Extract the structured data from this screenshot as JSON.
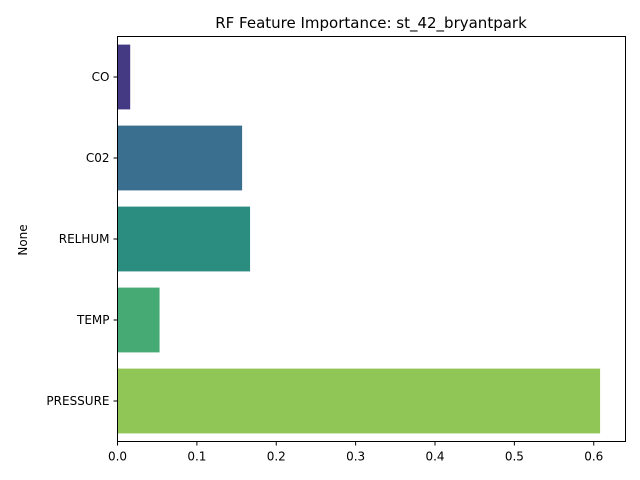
{
  "chart_data": {
    "type": "bar",
    "orientation": "horizontal",
    "title": "RF Feature Importance: st_42_bryantpark",
    "xlabel": "",
    "ylabel": "None",
    "categories": [
      "CO",
      "C02",
      "RELHUM",
      "TEMP",
      "PRESSURE"
    ],
    "values": [
      0.016,
      0.157,
      0.167,
      0.053,
      0.608
    ],
    "colors": [
      "#443a83",
      "#3b6f8f",
      "#2b8c80",
      "#46aa74",
      "#8fc655"
    ],
    "xlim": [
      0,
      0.64
    ],
    "xticks": [
      0.0,
      0.1,
      0.2,
      0.3,
      0.4,
      0.5,
      0.6
    ],
    "xtick_labels": [
      "0.0",
      "0.1",
      "0.2",
      "0.3",
      "0.4",
      "0.5",
      "0.6"
    ],
    "grid": false,
    "legend": "none"
  }
}
